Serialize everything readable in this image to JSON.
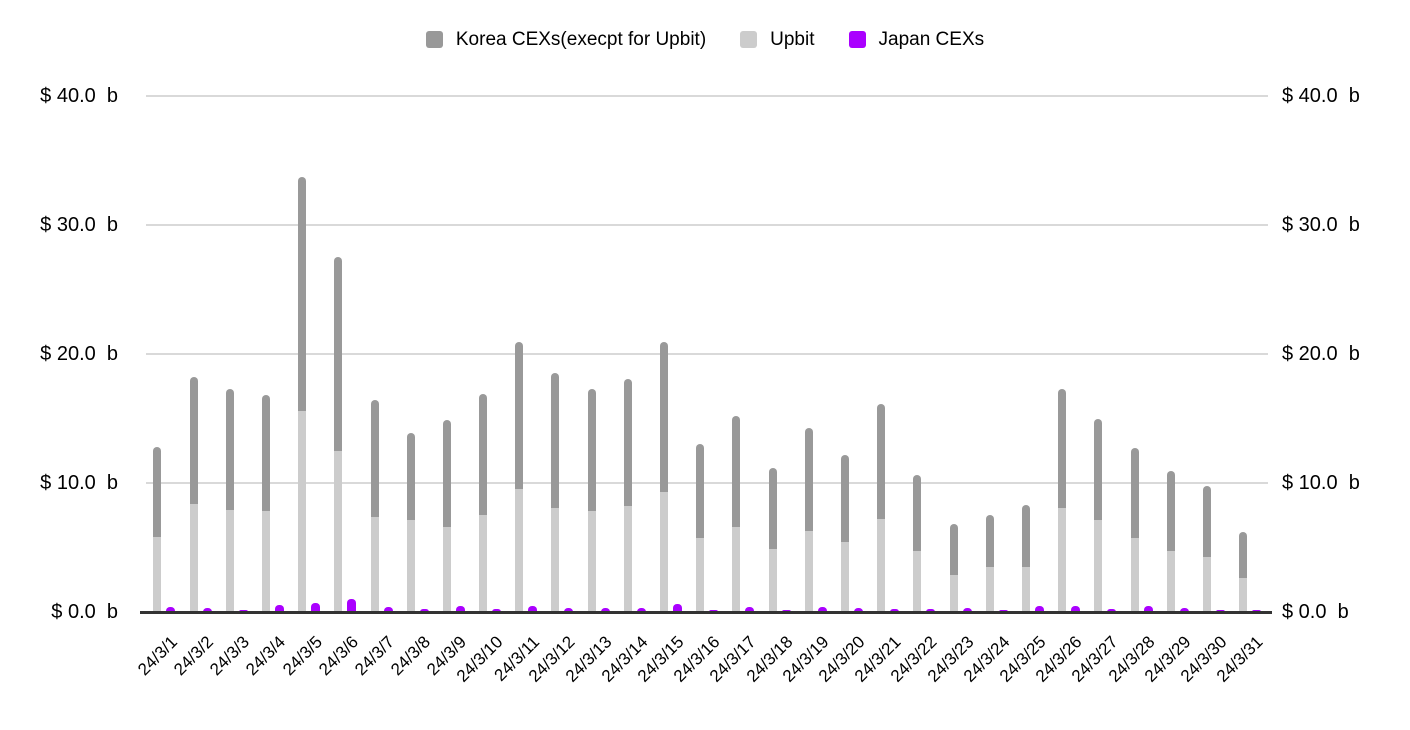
{
  "chart_data": {
    "type": "bar",
    "stacked": true,
    "categories": [
      "24/3/1",
      "24/3/2",
      "24/3/3",
      "24/3/4",
      "24/3/5",
      "24/3/6",
      "24/3/7",
      "24/3/8",
      "24/3/9",
      "24/3/10",
      "24/3/11",
      "24/3/12",
      "24/3/13",
      "24/3/14",
      "24/3/15",
      "24/3/16",
      "24/3/17",
      "24/3/18",
      "24/3/19",
      "24/3/20",
      "24/3/21",
      "24/3/22",
      "24/3/23",
      "24/3/24",
      "24/3/25",
      "24/3/26",
      "24/3/27",
      "24/3/28",
      "24/3/29",
      "24/3/30",
      "24/3/31"
    ],
    "series": [
      {
        "name": "Upbit",
        "color": "#cccccc",
        "role": "stack-bottom",
        "values": [
          5.8,
          8.4,
          7.9,
          7.8,
          15.6,
          12.5,
          7.4,
          7.1,
          6.6,
          7.5,
          9.5,
          8.1,
          7.8,
          8.2,
          9.3,
          5.7,
          6.6,
          4.9,
          6.3,
          5.4,
          7.2,
          4.7,
          2.9,
          3.5,
          3.5,
          8.1,
          7.1,
          5.7,
          4.7,
          4.3,
          2.6
        ]
      },
      {
        "name": "Korea CEXs(execpt for Upbit)",
        "color": "#999999",
        "role": "stack-top",
        "values": [
          7.0,
          9.8,
          9.4,
          9.0,
          18.1,
          15.0,
          9.0,
          6.8,
          8.3,
          9.4,
          11.4,
          10.4,
          9.5,
          9.9,
          11.6,
          7.3,
          8.6,
          6.3,
          8.0,
          6.8,
          8.9,
          5.9,
          3.9,
          4.0,
          4.8,
          9.2,
          7.9,
          7.0,
          6.2,
          5.5,
          3.6
        ]
      },
      {
        "name": "Japan CEXs",
        "color": "#aa00ff",
        "role": "separate-bar",
        "values": [
          0.4,
          0.3,
          0.15,
          0.55,
          0.7,
          1.0,
          0.4,
          0.25,
          0.45,
          0.25,
          0.45,
          0.3,
          0.3,
          0.3,
          0.65,
          0.15,
          0.35,
          0.15,
          0.4,
          0.3,
          0.25,
          0.25,
          0.3,
          0.1,
          0.45,
          0.45,
          0.25,
          0.45,
          0.3,
          0.1,
          0.1
        ]
      }
    ],
    "legend": [
      {
        "name": "Korea CEXs(execpt for Upbit)",
        "color": "#999999"
      },
      {
        "name": "Upbit",
        "color": "#cccccc"
      },
      {
        "name": "Japan CEXs",
        "color": "#aa00ff"
      }
    ],
    "legend_position": "top-center",
    "ylim": [
      0,
      40
    ],
    "y_ticks": [
      {
        "value": 40,
        "label": "$ 40.0  b"
      },
      {
        "value": 30,
        "label": "$ 30.0  b"
      },
      {
        "value": 20,
        "label": "$ 20.0  b"
      },
      {
        "value": 10,
        "label": "$ 10.0  b"
      },
      {
        "value": 0,
        "label": "$ 0.0  b"
      }
    ],
    "axis_sides": [
      "left",
      "right"
    ],
    "grid": true,
    "colors": {
      "grid": "#d9d9d9",
      "baseline": "#333333",
      "text": "#000000",
      "background": "#ffffff"
    }
  }
}
